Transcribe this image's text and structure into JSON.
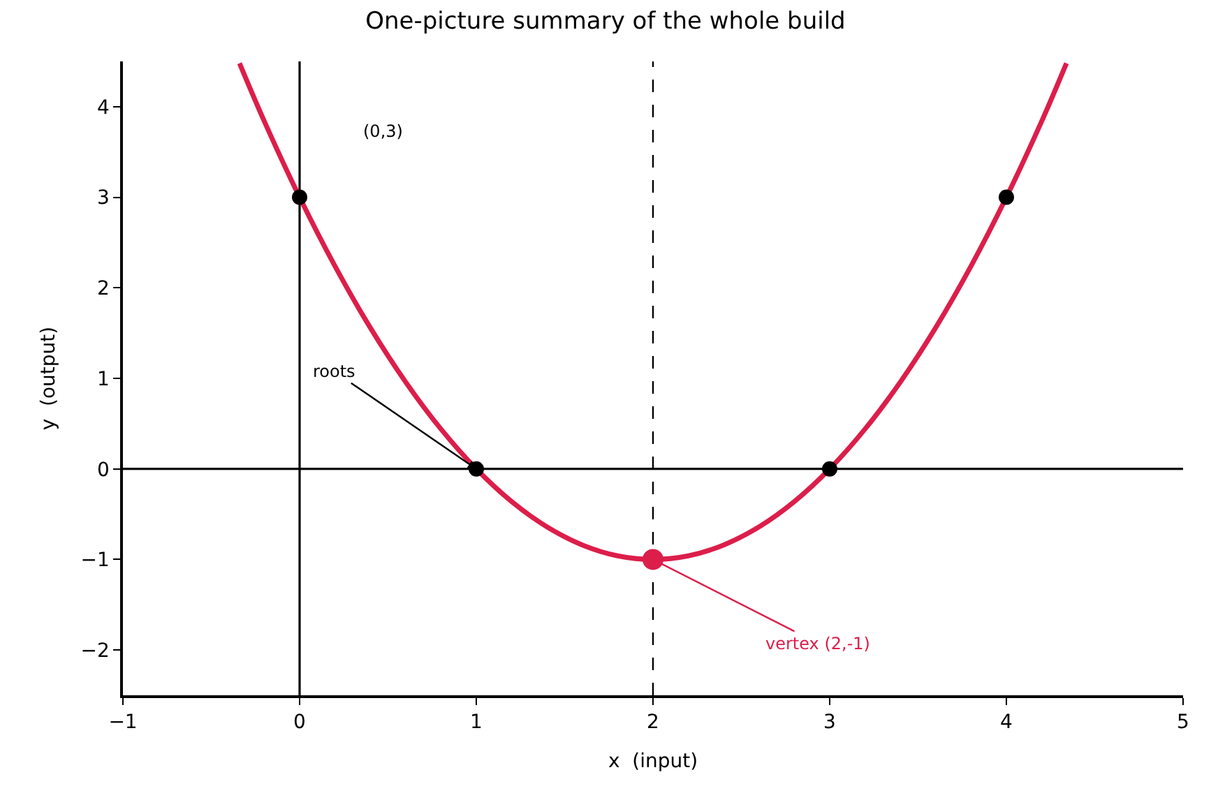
{
  "chart_data": {
    "type": "line",
    "title": "One-picture summary of the whole build",
    "xlabel": "x  (input)",
    "ylabel": "y  (output)",
    "xlim": [
      -1,
      5
    ],
    "ylim": [
      -2.5,
      4.5
    ],
    "xticks": [
      {
        "value": -1,
        "label": "−1"
      },
      0,
      1,
      2,
      3,
      4,
      5
    ],
    "yticks": [
      {
        "value": -2,
        "label": "−2"
      },
      {
        "value": -1,
        "label": "−1"
      },
      0,
      1,
      2,
      3,
      4
    ],
    "grid": false,
    "series": [
      {
        "color": "#dc1e4a",
        "marker": "none",
        "line_style": "solid",
        "x": [
          -0.34,
          -0.2,
          0,
          0.2,
          0.4,
          0.6,
          0.8,
          1,
          1.2,
          1.4,
          1.6,
          1.8,
          2,
          2.2,
          2.4,
          2.6,
          2.8,
          3,
          3.2,
          3.4,
          3.6,
          3.8,
          4,
          4.2,
          4.34
        ],
        "values": [
          4.48,
          3.84,
          3,
          2.24,
          1.56,
          0.96,
          0.44,
          0,
          -0.36,
          -0.64,
          -0.84,
          -0.96,
          -1,
          -0.96,
          -0.84,
          -0.64,
          -0.36,
          0,
          0.44,
          0.96,
          1.56,
          2.24,
          3,
          3.84,
          4.48
        ]
      },
      {
        "type": "scatter",
        "color": "#000000",
        "marker": "circle",
        "x": [
          0,
          1,
          3,
          4
        ],
        "values": [
          3,
          0,
          0,
          3
        ]
      },
      {
        "type": "scatter",
        "color": "#dc1e4a",
        "marker": "circle",
        "x": [
          2
        ],
        "values": [
          -1
        ]
      }
    ],
    "ref_lines": [
      {
        "axis": "x",
        "value": 0,
        "color": "#000000",
        "line_style": "solid"
      },
      {
        "axis": "y",
        "value": 0,
        "color": "#000000",
        "line_style": "solid"
      },
      {
        "axis": "x",
        "value": 2,
        "color": "#000000",
        "line_style": "dashed"
      }
    ],
    "annotations": [
      "(0,3)",
      {
        "text": "roots",
        "x": 1,
        "y": 0
      },
      {
        "text": "vertex (2,-1)",
        "x": 2,
        "y": -1
      }
    ]
  }
}
